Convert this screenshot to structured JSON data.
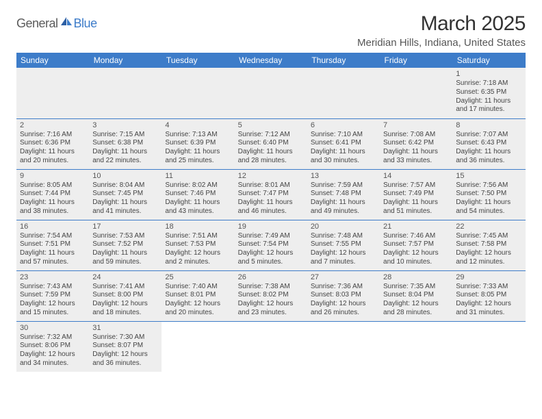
{
  "logo": {
    "part1": "General",
    "part2": "Blue"
  },
  "title": "March 2025",
  "location": "Meridian Hills, Indiana, United States",
  "colors": {
    "header_bg": "#3d7cc9",
    "header_fg": "#ffffff",
    "cell_bg": "#eeeeee",
    "text": "#444444",
    "logo_gray": "#5a5a5a",
    "logo_blue": "#3d7cc9"
  },
  "day_headers": [
    "Sunday",
    "Monday",
    "Tuesday",
    "Wednesday",
    "Thursday",
    "Friday",
    "Saturday"
  ],
  "weeks": [
    [
      null,
      null,
      null,
      null,
      null,
      null,
      {
        "n": "1",
        "sr": "Sunrise: 7:18 AM",
        "ss": "Sunset: 6:35 PM",
        "dl": "Daylight: 11 hours and 17 minutes."
      }
    ],
    [
      {
        "n": "2",
        "sr": "Sunrise: 7:16 AM",
        "ss": "Sunset: 6:36 PM",
        "dl": "Daylight: 11 hours and 20 minutes."
      },
      {
        "n": "3",
        "sr": "Sunrise: 7:15 AM",
        "ss": "Sunset: 6:38 PM",
        "dl": "Daylight: 11 hours and 22 minutes."
      },
      {
        "n": "4",
        "sr": "Sunrise: 7:13 AM",
        "ss": "Sunset: 6:39 PM",
        "dl": "Daylight: 11 hours and 25 minutes."
      },
      {
        "n": "5",
        "sr": "Sunrise: 7:12 AM",
        "ss": "Sunset: 6:40 PM",
        "dl": "Daylight: 11 hours and 28 minutes."
      },
      {
        "n": "6",
        "sr": "Sunrise: 7:10 AM",
        "ss": "Sunset: 6:41 PM",
        "dl": "Daylight: 11 hours and 30 minutes."
      },
      {
        "n": "7",
        "sr": "Sunrise: 7:08 AM",
        "ss": "Sunset: 6:42 PM",
        "dl": "Daylight: 11 hours and 33 minutes."
      },
      {
        "n": "8",
        "sr": "Sunrise: 7:07 AM",
        "ss": "Sunset: 6:43 PM",
        "dl": "Daylight: 11 hours and 36 minutes."
      }
    ],
    [
      {
        "n": "9",
        "sr": "Sunrise: 8:05 AM",
        "ss": "Sunset: 7:44 PM",
        "dl": "Daylight: 11 hours and 38 minutes."
      },
      {
        "n": "10",
        "sr": "Sunrise: 8:04 AM",
        "ss": "Sunset: 7:45 PM",
        "dl": "Daylight: 11 hours and 41 minutes."
      },
      {
        "n": "11",
        "sr": "Sunrise: 8:02 AM",
        "ss": "Sunset: 7:46 PM",
        "dl": "Daylight: 11 hours and 43 minutes."
      },
      {
        "n": "12",
        "sr": "Sunrise: 8:01 AM",
        "ss": "Sunset: 7:47 PM",
        "dl": "Daylight: 11 hours and 46 minutes."
      },
      {
        "n": "13",
        "sr": "Sunrise: 7:59 AM",
        "ss": "Sunset: 7:48 PM",
        "dl": "Daylight: 11 hours and 49 minutes."
      },
      {
        "n": "14",
        "sr": "Sunrise: 7:57 AM",
        "ss": "Sunset: 7:49 PM",
        "dl": "Daylight: 11 hours and 51 minutes."
      },
      {
        "n": "15",
        "sr": "Sunrise: 7:56 AM",
        "ss": "Sunset: 7:50 PM",
        "dl": "Daylight: 11 hours and 54 minutes."
      }
    ],
    [
      {
        "n": "16",
        "sr": "Sunrise: 7:54 AM",
        "ss": "Sunset: 7:51 PM",
        "dl": "Daylight: 11 hours and 57 minutes."
      },
      {
        "n": "17",
        "sr": "Sunrise: 7:53 AM",
        "ss": "Sunset: 7:52 PM",
        "dl": "Daylight: 11 hours and 59 minutes."
      },
      {
        "n": "18",
        "sr": "Sunrise: 7:51 AM",
        "ss": "Sunset: 7:53 PM",
        "dl": "Daylight: 12 hours and 2 minutes."
      },
      {
        "n": "19",
        "sr": "Sunrise: 7:49 AM",
        "ss": "Sunset: 7:54 PM",
        "dl": "Daylight: 12 hours and 5 minutes."
      },
      {
        "n": "20",
        "sr": "Sunrise: 7:48 AM",
        "ss": "Sunset: 7:55 PM",
        "dl": "Daylight: 12 hours and 7 minutes."
      },
      {
        "n": "21",
        "sr": "Sunrise: 7:46 AM",
        "ss": "Sunset: 7:57 PM",
        "dl": "Daylight: 12 hours and 10 minutes."
      },
      {
        "n": "22",
        "sr": "Sunrise: 7:45 AM",
        "ss": "Sunset: 7:58 PM",
        "dl": "Daylight: 12 hours and 12 minutes."
      }
    ],
    [
      {
        "n": "23",
        "sr": "Sunrise: 7:43 AM",
        "ss": "Sunset: 7:59 PM",
        "dl": "Daylight: 12 hours and 15 minutes."
      },
      {
        "n": "24",
        "sr": "Sunrise: 7:41 AM",
        "ss": "Sunset: 8:00 PM",
        "dl": "Daylight: 12 hours and 18 minutes."
      },
      {
        "n": "25",
        "sr": "Sunrise: 7:40 AM",
        "ss": "Sunset: 8:01 PM",
        "dl": "Daylight: 12 hours and 20 minutes."
      },
      {
        "n": "26",
        "sr": "Sunrise: 7:38 AM",
        "ss": "Sunset: 8:02 PM",
        "dl": "Daylight: 12 hours and 23 minutes."
      },
      {
        "n": "27",
        "sr": "Sunrise: 7:36 AM",
        "ss": "Sunset: 8:03 PM",
        "dl": "Daylight: 12 hours and 26 minutes."
      },
      {
        "n": "28",
        "sr": "Sunrise: 7:35 AM",
        "ss": "Sunset: 8:04 PM",
        "dl": "Daylight: 12 hours and 28 minutes."
      },
      {
        "n": "29",
        "sr": "Sunrise: 7:33 AM",
        "ss": "Sunset: 8:05 PM",
        "dl": "Daylight: 12 hours and 31 minutes."
      }
    ],
    [
      {
        "n": "30",
        "sr": "Sunrise: 7:32 AM",
        "ss": "Sunset: 8:06 PM",
        "dl": "Daylight: 12 hours and 34 minutes."
      },
      {
        "n": "31",
        "sr": "Sunrise: 7:30 AM",
        "ss": "Sunset: 8:07 PM",
        "dl": "Daylight: 12 hours and 36 minutes."
      },
      null,
      null,
      null,
      null,
      null
    ]
  ]
}
